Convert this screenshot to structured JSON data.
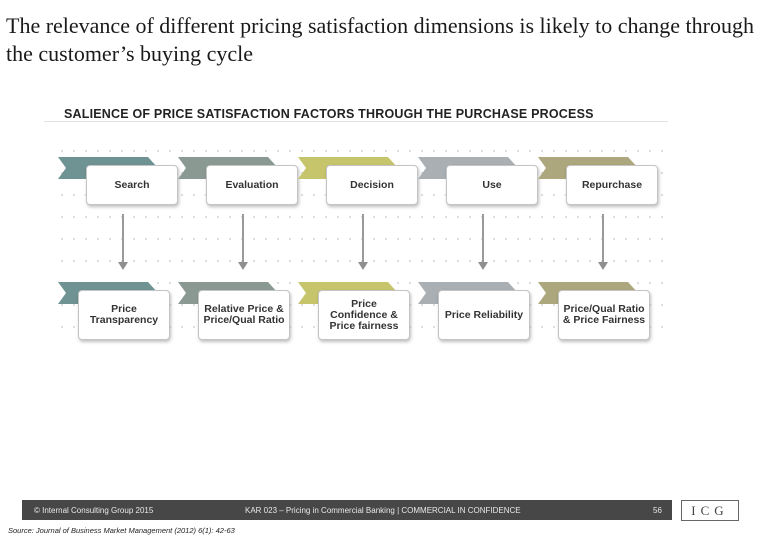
{
  "slide": {
    "title": "The relevance of different pricing satisfaction dimensions is likely to change through the customer’s buying cycle",
    "subtitle": "SALIENCE OF PRICE SATISFACTION FACTORS THROUGH THE PURCHASE PROCESS"
  },
  "stages": [
    {
      "label": "Search",
      "color": "#6f9393"
    },
    {
      "label": "Evaluation",
      "color": "#8a9a92"
    },
    {
      "label": "Decision",
      "color": "#c7c56b"
    },
    {
      "label": "Use",
      "color": "#a9afb3"
    },
    {
      "label": "Repurchase",
      "color": "#aca77c"
    }
  ],
  "factors": [
    {
      "label": "Price\nTransparency"
    },
    {
      "label": "Relative Price &\nPrice/Qual Ratio"
    },
    {
      "label": "Price\nConfidence &\nPrice fairness"
    },
    {
      "label": "Price Reliability"
    },
    {
      "label": "Price/Qual Ratio\n& Price Fairness"
    }
  ],
  "footer": {
    "copyright": "© Internal Consulting Group 2015",
    "project": "KAR 023 – Pricing in Commercial Banking | COMMERCIAL IN CONFIDENCE",
    "page": "56",
    "logo": "ICG",
    "source": "Source: Journal of Business Market Management (2012) 6(1): 42-63"
  }
}
